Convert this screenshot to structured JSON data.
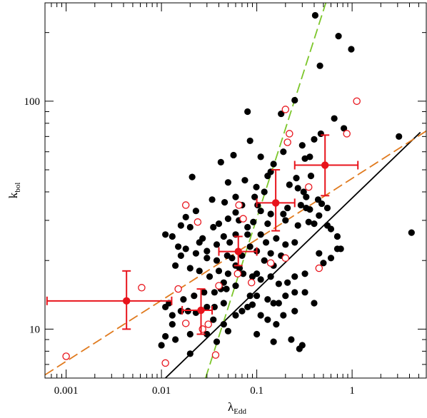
{
  "chart_data": {
    "type": "scatter",
    "title": "",
    "xlabel": "λ",
    "xlabel_sub": "Edd",
    "ylabel": "k",
    "ylabel_sub": "bol",
    "xscale": "log",
    "yscale": "log",
    "xlim": [
      0.0006,
      6
    ],
    "ylim": [
      6.1,
      270
    ],
    "x_tick_labels": [
      {
        "value": 0.001,
        "label": "0.001"
      },
      {
        "value": 0.01,
        "label": "0.01"
      },
      {
        "value": 0.1,
        "label": "0.1"
      },
      {
        "value": 1,
        "label": "1"
      }
    ],
    "y_tick_labels": [
      {
        "value": 10,
        "label": "10"
      },
      {
        "value": 100,
        "label": "100"
      }
    ],
    "grid": false,
    "colors": {
      "filled": "#000000",
      "open": "#e8141c",
      "binned": "#e8141c",
      "fit_black": "#000000",
      "fit_green": "#7cc62a",
      "fit_orange": "#e07a1e"
    },
    "series": [
      {
        "style": "filled-circle",
        "points": [
          [
            0.41,
            238
          ],
          [
            0.72,
            193
          ],
          [
            0.98,
            169
          ],
          [
            0.46,
            143
          ],
          [
            0.25,
            101
          ],
          [
            0.18,
            88
          ],
          [
            0.65,
            84
          ],
          [
            0.4,
            68
          ],
          [
            0.3,
            64
          ],
          [
            0.36,
            57
          ],
          [
            0.32,
            56
          ],
          [
            0.82,
            76
          ],
          [
            0.47,
            72
          ],
          [
            3.1,
            70
          ],
          [
            4.2,
            26.5
          ],
          [
            0.08,
            90
          ],
          [
            0.085,
            67
          ],
          [
            0.042,
            54
          ],
          [
            0.057,
            58
          ],
          [
            0.021,
            46.5
          ],
          [
            0.19,
            60
          ],
          [
            0.11,
            57
          ],
          [
            0.15,
            53
          ],
          [
            0.14,
            49
          ],
          [
            0.13,
            47
          ],
          [
            0.075,
            45
          ],
          [
            0.05,
            44
          ],
          [
            0.37,
            47
          ],
          [
            0.26,
            46
          ],
          [
            0.22,
            43
          ],
          [
            0.27,
            41.5
          ],
          [
            0.31,
            40
          ],
          [
            0.33,
            38
          ],
          [
            0.44,
            37
          ],
          [
            0.48,
            35.5
          ],
          [
            0.55,
            34
          ],
          [
            0.29,
            35
          ],
          [
            0.33,
            34
          ],
          [
            0.12,
            40
          ],
          [
            0.099,
            42
          ],
          [
            0.095,
            38
          ],
          [
            0.06,
            38
          ],
          [
            0.034,
            37
          ],
          [
            0.046,
            36
          ],
          [
            0.07,
            35
          ],
          [
            0.102,
            35
          ],
          [
            0.11,
            33
          ],
          [
            0.14,
            32
          ],
          [
            0.19,
            32
          ],
          [
            0.21,
            34
          ],
          [
            0.36,
            33.5
          ],
          [
            0.45,
            31.5
          ],
          [
            0.55,
            28.5
          ],
          [
            0.6,
            27.5
          ],
          [
            0.7,
            25.5
          ],
          [
            0.76,
            22.5
          ],
          [
            0.7,
            22.5
          ],
          [
            0.4,
            29
          ],
          [
            0.35,
            29.5
          ],
          [
            0.27,
            28.5
          ],
          [
            0.2,
            30
          ],
          [
            0.13,
            29
          ],
          [
            0.092,
            29.5
          ],
          [
            0.08,
            28
          ],
          [
            0.065,
            30
          ],
          [
            0.06,
            32.5
          ],
          [
            0.05,
            30.5
          ],
          [
            0.04,
            29
          ],
          [
            0.035,
            28
          ],
          [
            0.023,
            33
          ],
          [
            0.02,
            28
          ],
          [
            0.027,
            25
          ],
          [
            0.018,
            31
          ],
          [
            0.016,
            28.5
          ],
          [
            0.013,
            25.5
          ],
          [
            0.011,
            26
          ],
          [
            0.015,
            23
          ],
          [
            0.018,
            22.5
          ],
          [
            0.025,
            24
          ],
          [
            0.03,
            22
          ],
          [
            0.038,
            23.5
          ],
          [
            0.045,
            25.5
          ],
          [
            0.052,
            24
          ],
          [
            0.06,
            26
          ],
          [
            0.08,
            26
          ],
          [
            0.11,
            26
          ],
          [
            0.125,
            24
          ],
          [
            0.14,
            21.5
          ],
          [
            0.16,
            25
          ],
          [
            0.2,
            23.5
          ],
          [
            0.25,
            24
          ],
          [
            0.18,
            21
          ],
          [
            0.15,
            19
          ],
          [
            0.12,
            20
          ],
          [
            0.1,
            22
          ],
          [
            0.085,
            23
          ],
          [
            0.07,
            21
          ],
          [
            0.055,
            20.5
          ],
          [
            0.049,
            21
          ],
          [
            0.038,
            20
          ],
          [
            0.03,
            20.5
          ],
          [
            0.023,
            21.5
          ],
          [
            0.016,
            21
          ],
          [
            0.014,
            19
          ],
          [
            0.02,
            18.5
          ],
          [
            0.025,
            18
          ],
          [
            0.032,
            17
          ],
          [
            0.04,
            18
          ],
          [
            0.05,
            17.5
          ],
          [
            0.06,
            19
          ],
          [
            0.066,
            18.5
          ],
          [
            0.072,
            17.5
          ],
          [
            0.09,
            17
          ],
          [
            0.1,
            17.5
          ],
          [
            0.11,
            16.5
          ],
          [
            0.14,
            17
          ],
          [
            0.17,
            15.8
          ],
          [
            0.21,
            16
          ],
          [
            0.25,
            17
          ],
          [
            0.32,
            17.5
          ],
          [
            0.45,
            21.5
          ],
          [
            0.5,
            19.5
          ],
          [
            0.6,
            20.5
          ],
          [
            0.25,
            14.5
          ],
          [
            0.2,
            14
          ],
          [
            0.17,
            13
          ],
          [
            0.15,
            13
          ],
          [
            0.13,
            13.5
          ],
          [
            0.1,
            14
          ],
          [
            0.085,
            14
          ],
          [
            0.06,
            15.5
          ],
          [
            0.048,
            15
          ],
          [
            0.042,
            15
          ],
          [
            0.036,
            14.5
          ],
          [
            0.028,
            14.5
          ],
          [
            0.022,
            14
          ],
          [
            0.017,
            13.5
          ],
          [
            0.012,
            13
          ],
          [
            0.011,
            12.5
          ],
          [
            0.013,
            11.5
          ],
          [
            0.016,
            12
          ],
          [
            0.019,
            12
          ],
          [
            0.023,
            11.8
          ],
          [
            0.03,
            12.5
          ],
          [
            0.036,
            12.5
          ],
          [
            0.045,
            13
          ],
          [
            0.06,
            11.5
          ],
          [
            0.07,
            12
          ],
          [
            0.08,
            12.5
          ],
          [
            0.09,
            12.8
          ],
          [
            0.11,
            11.5
          ],
          [
            0.13,
            11
          ],
          [
            0.16,
            10.5
          ],
          [
            0.19,
            11.5
          ],
          [
            0.25,
            12
          ],
          [
            0.32,
            14.5
          ],
          [
            0.4,
            13
          ],
          [
            0.035,
            11
          ],
          [
            0.045,
            10.5
          ],
          [
            0.013,
            10.5
          ],
          [
            0.011,
            9.3
          ],
          [
            0.014,
            9
          ],
          [
            0.01,
            8.5
          ],
          [
            0.02,
            9.5
          ],
          [
            0.03,
            9.5
          ],
          [
            0.05,
            9.8
          ],
          [
            0.1,
            9.5
          ],
          [
            0.15,
            8.8
          ],
          [
            0.23,
            9
          ],
          [
            0.3,
            8.5
          ],
          [
            0.28,
            8.2
          ],
          [
            0.038,
            8.8
          ],
          [
            0.02,
            7.8
          ],
          [
            0.045,
            16
          ]
        ]
      },
      {
        "style": "open-circle",
        "points": [
          [
            0.001,
            7.6
          ],
          [
            0.0062,
            15.2
          ],
          [
            0.011,
            7.1
          ],
          [
            0.015,
            15
          ],
          [
            0.018,
            35
          ],
          [
            0.018,
            10.6
          ],
          [
            0.024,
            29.5
          ],
          [
            0.027,
            10
          ],
          [
            0.031,
            10.5
          ],
          [
            0.037,
            7.7
          ],
          [
            0.04,
            15.5
          ],
          [
            0.065,
            35
          ],
          [
            0.072,
            30.5
          ],
          [
            0.088,
            16
          ],
          [
            0.063,
            17.5
          ],
          [
            0.14,
            19.5
          ],
          [
            0.2,
            20.5
          ],
          [
            0.21,
            66
          ],
          [
            0.22,
            72
          ],
          [
            0.2,
            92
          ],
          [
            0.35,
            42
          ],
          [
            0.45,
            18.5
          ],
          [
            0.88,
            72
          ],
          [
            1.12,
            100
          ]
        ]
      },
      {
        "style": "binned",
        "points": [
          {
            "x": 0.0043,
            "y": 13.3,
            "x_err": [
              0.00063,
              0.0128
            ],
            "y_err": [
              10,
              18
            ]
          },
          {
            "x": 0.026,
            "y": 12.1,
            "x_err": [
              0.0165,
              0.034
            ],
            "y_err": [
              9.5,
              15
            ]
          },
          {
            "x": 0.064,
            "y": 21.9,
            "x_err": [
              0.04,
              0.1
            ],
            "y_err": [
              19,
              25.5
            ]
          },
          {
            "x": 0.158,
            "y": 35.8,
            "x_err": [
              0.1,
              0.25
            ],
            "y_err": [
              27,
              50
            ]
          },
          {
            "x": 0.52,
            "y": 52.4,
            "x_err": [
              0.25,
              1.15
            ],
            "y_err": [
              38.5,
              71
            ]
          }
        ]
      }
    ],
    "fit_lines": [
      {
        "style": "solid",
        "color": "black",
        "points": [
          [
            0.011,
            6.1
          ],
          [
            5.2,
            73
          ]
        ]
      },
      {
        "style": "dashed",
        "color": "green",
        "points": [
          [
            0.029,
            6.1
          ],
          [
            0.53,
            270
          ]
        ]
      },
      {
        "style": "dashed",
        "color": "orange",
        "points": [
          [
            0.0006,
            6.3
          ],
          [
            6,
            74
          ]
        ]
      }
    ]
  }
}
